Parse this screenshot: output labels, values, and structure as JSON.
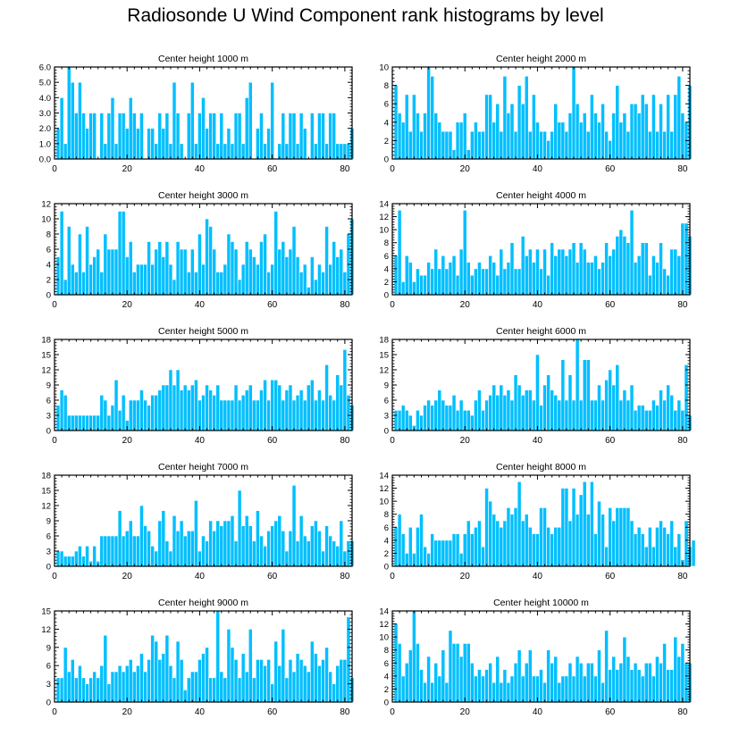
{
  "title": "Radiosonde U Wind Component rank histograms by level",
  "colors": {
    "bar": "#00bfff",
    "bar_edge": "#ffffff",
    "axis": "#000000",
    "background": "#ffffff"
  },
  "chart_data": [
    {
      "type": "bar",
      "title": "Center height 1000 m",
      "xlabel": "",
      "ylabel": "",
      "xlim": [
        0,
        82
      ],
      "ylim": [
        0,
        6
      ],
      "xticks": [
        0,
        20,
        40,
        60,
        80
      ],
      "yticks": [
        0,
        1,
        2,
        3,
        4,
        5,
        6
      ],
      "ytick_labels": [
        "0.0",
        "1.0",
        "2.0",
        "3.0",
        "4.0",
        "5.0",
        "6.0"
      ],
      "x_start": 1,
      "values": [
        2,
        4,
        1,
        6,
        5,
        3,
        5,
        3,
        2,
        3,
        3,
        0,
        3,
        1,
        3,
        4,
        1,
        3,
        3,
        2,
        4,
        3,
        2,
        3,
        0,
        2,
        2,
        1,
        3,
        2,
        3,
        1,
        5,
        3,
        1,
        0,
        3,
        5,
        1,
        3,
        4,
        2,
        3,
        3,
        1,
        3,
        1,
        2,
        1,
        3,
        3,
        1,
        4,
        5,
        0,
        2,
        3,
        1,
        2,
        5,
        0,
        1,
        3,
        1,
        3,
        3,
        1,
        3,
        2,
        0,
        3,
        1,
        3,
        3,
        1,
        3,
        3,
        1,
        1,
        1,
        1,
        2
      ]
    },
    {
      "type": "bar",
      "title": "Center height 2000 m",
      "xlabel": "",
      "ylabel": "",
      "xlim": [
        0,
        82
      ],
      "ylim": [
        0,
        10
      ],
      "xticks": [
        0,
        20,
        40,
        60,
        80
      ],
      "yticks": [
        0,
        2,
        4,
        6,
        8,
        10
      ],
      "ytick_labels": [
        "0",
        "2",
        "4",
        "6",
        "8",
        "10"
      ],
      "x_start": 1,
      "values": [
        8,
        5,
        4,
        7,
        3,
        7,
        5,
        3,
        5,
        10,
        9,
        5,
        4,
        3,
        3,
        3,
        1,
        4,
        4,
        5,
        1,
        3,
        4,
        3,
        3,
        7,
        7,
        4,
        6,
        3,
        9,
        5,
        6,
        3,
        8,
        6,
        9,
        3,
        7,
        4,
        3,
        3,
        2,
        3,
        6,
        4,
        4,
        3,
        5,
        10,
        6,
        4,
        5,
        3,
        7,
        5,
        4,
        6,
        3,
        2,
        5,
        8,
        4,
        5,
        3,
        6,
        6,
        5,
        7,
        6,
        3,
        7,
        3,
        6,
        3,
        7,
        3,
        7,
        9,
        5,
        4,
        8
      ]
    },
    {
      "type": "bar",
      "title": "Center height 3000 m",
      "xlabel": "",
      "ylabel": "",
      "xlim": [
        0,
        82
      ],
      "ylim": [
        0,
        12
      ],
      "xticks": [
        0,
        20,
        40,
        60,
        80
      ],
      "yticks": [
        0,
        2,
        4,
        6,
        8,
        10,
        12
      ],
      "ytick_labels": [
        "0",
        "2",
        "4",
        "6",
        "8",
        "10",
        "12"
      ],
      "x_start": 1,
      "values": [
        5,
        11,
        2,
        9,
        4,
        3,
        8,
        3,
        9,
        4,
        5,
        6,
        3,
        8,
        6,
        6,
        6,
        11,
        11,
        5,
        7,
        3,
        4,
        4,
        4,
        7,
        4,
        6,
        7,
        5,
        7,
        4,
        2,
        7,
        6,
        6,
        3,
        6,
        3,
        8,
        4,
        10,
        9,
        6,
        3,
        3,
        4,
        8,
        7,
        6,
        2,
        4,
        7,
        6,
        5,
        4,
        7,
        8,
        3,
        4,
        11,
        6,
        7,
        5,
        6,
        9,
        5,
        3,
        4,
        1,
        5,
        2,
        4,
        3,
        9,
        4,
        7,
        5,
        6,
        3,
        8,
        10
      ]
    },
    {
      "type": "bar",
      "title": "Center height 4000 m",
      "xlabel": "",
      "ylabel": "",
      "xlim": [
        0,
        82
      ],
      "ylim": [
        0,
        14
      ],
      "xticks": [
        0,
        20,
        40,
        60,
        80
      ],
      "yticks": [
        0,
        2,
        4,
        6,
        8,
        10,
        12,
        14
      ],
      "ytick_labels": [
        "0",
        "2",
        "4",
        "6",
        "8",
        "10",
        "12",
        "14"
      ],
      "x_start": 1,
      "values": [
        6,
        13,
        2,
        6,
        5,
        2,
        4,
        3,
        3,
        5,
        4,
        7,
        4,
        6,
        4,
        5,
        6,
        3,
        7,
        13,
        5,
        3,
        4,
        5,
        4,
        4,
        6,
        5,
        3,
        7,
        4,
        5,
        8,
        4,
        4,
        9,
        6,
        7,
        5,
        7,
        4,
        7,
        3,
        8,
        6,
        7,
        7,
        6,
        7,
        8,
        5,
        8,
        7,
        5,
        5,
        6,
        4,
        5,
        8,
        6,
        7,
        9,
        10,
        9,
        8,
        13,
        5,
        6,
        8,
        8,
        3,
        6,
        5,
        8,
        4,
        3,
        7,
        7,
        6,
        11,
        11,
        9
      ]
    },
    {
      "type": "bar",
      "title": "Center height 5000 m",
      "xlabel": "",
      "ylabel": "",
      "xlim": [
        0,
        82
      ],
      "ylim": [
        0,
        18
      ],
      "xticks": [
        0,
        20,
        40,
        60,
        80
      ],
      "yticks": [
        0,
        3,
        6,
        9,
        12,
        15,
        18
      ],
      "ytick_labels": [
        "0",
        "3",
        "6",
        "9",
        "12",
        "15",
        "18"
      ],
      "x_start": 1,
      "values": [
        5,
        8,
        7,
        3,
        3,
        3,
        3,
        3,
        3,
        3,
        3,
        3,
        7,
        6,
        3,
        5,
        10,
        4,
        7,
        2,
        6,
        6,
        6,
        8,
        6,
        5,
        7,
        7,
        8,
        9,
        9,
        12,
        9,
        12,
        8,
        9,
        8,
        9,
        10,
        6,
        7,
        9,
        8,
        7,
        9,
        6,
        6,
        6,
        6,
        9,
        6,
        7,
        8,
        9,
        6,
        6,
        8,
        10,
        6,
        10,
        10,
        9,
        6,
        8,
        9,
        6,
        7,
        8,
        6,
        9,
        10,
        6,
        8,
        6,
        13,
        7,
        6,
        11,
        9,
        16,
        7,
        5
      ]
    },
    {
      "type": "bar",
      "title": "Center height 6000 m",
      "xlabel": "",
      "ylabel": "",
      "xlim": [
        0,
        82
      ],
      "ylim": [
        0,
        18
      ],
      "xticks": [
        0,
        20,
        40,
        60,
        80
      ],
      "yticks": [
        0,
        3,
        6,
        9,
        12,
        15,
        18
      ],
      "ytick_labels": [
        "0",
        "3",
        "6",
        "9",
        "12",
        "15",
        "18"
      ],
      "x_start": 1,
      "values": [
        4,
        4,
        5,
        4,
        3,
        1,
        4,
        3,
        5,
        6,
        5,
        6,
        8,
        6,
        5,
        5,
        7,
        4,
        6,
        4,
        4,
        3,
        6,
        8,
        4,
        6,
        7,
        9,
        7,
        9,
        7,
        8,
        6,
        11,
        9,
        7,
        8,
        8,
        6,
        15,
        5,
        9,
        11,
        8,
        7,
        6,
        14,
        6,
        11,
        6,
        18,
        6,
        14,
        14,
        6,
        6,
        9,
        6,
        10,
        12,
        9,
        13,
        6,
        8,
        6,
        9,
        4,
        5,
        5,
        4,
        4,
        6,
        5,
        8,
        6,
        9,
        7,
        4,
        6,
        4,
        13,
        3
      ]
    },
    {
      "type": "bar",
      "title": "Center height 7000 m",
      "xlabel": "",
      "ylabel": "",
      "xlim": [
        0,
        82
      ],
      "ylim": [
        0,
        18
      ],
      "xticks": [
        0,
        20,
        40,
        60,
        80
      ],
      "yticks": [
        0,
        3,
        6,
        9,
        12,
        15,
        18
      ],
      "ytick_labels": [
        "0",
        "3",
        "6",
        "9",
        "12",
        "15",
        "18"
      ],
      "x_start": 1,
      "values": [
        3,
        3,
        2,
        2,
        2,
        3,
        4,
        2,
        4,
        1,
        4,
        1,
        6,
        6,
        6,
        6,
        6,
        11,
        6,
        7,
        9,
        6,
        6,
        12,
        8,
        7,
        4,
        3,
        9,
        11,
        5,
        3,
        10,
        7,
        9,
        6,
        7,
        7,
        13,
        3,
        6,
        5,
        9,
        7,
        9,
        8,
        9,
        9,
        10,
        5,
        15,
        8,
        10,
        8,
        5,
        11,
        6,
        4,
        7,
        8,
        9,
        10,
        7,
        3,
        7,
        16,
        5,
        10,
        6,
        5,
        8,
        9,
        7,
        3,
        8,
        6,
        5,
        4,
        9,
        3,
        5,
        5
      ]
    },
    {
      "type": "bar",
      "title": "Center height 8000 m",
      "xlabel": "",
      "ylabel": "",
      "xlim": [
        0,
        82
      ],
      "ylim": [
        0,
        14
      ],
      "xticks": [
        0,
        20,
        40,
        60,
        80
      ],
      "yticks": [
        0,
        2,
        4,
        6,
        8,
        10,
        12,
        14
      ],
      "ytick_labels": [
        "0",
        "2",
        "4",
        "6",
        "8",
        "10",
        "12",
        "14"
      ],
      "x_start": 1,
      "values": [
        6,
        8,
        5,
        2,
        6,
        2,
        6,
        8,
        3,
        2,
        5,
        4,
        4,
        4,
        4,
        4,
        5,
        5,
        2,
        5,
        7,
        5,
        6,
        7,
        3,
        12,
        10,
        8,
        7,
        6,
        7,
        9,
        8,
        9,
        13,
        7,
        8,
        6,
        5,
        5,
        9,
        9,
        6,
        5,
        6,
        6,
        12,
        12,
        7,
        12,
        8,
        11,
        13,
        8,
        13,
        5,
        10,
        8,
        3,
        9,
        7,
        9,
        9,
        9,
        9,
        7,
        5,
        6,
        5,
        3,
        6,
        3,
        6,
        7,
        6,
        5,
        7,
        3,
        5,
        1,
        7,
        3,
        4
      ]
    },
    {
      "type": "bar",
      "title": "Center height 9000 m",
      "xlabel": "",
      "ylabel": "",
      "xlim": [
        0,
        82
      ],
      "ylim": [
        0,
        15
      ],
      "xticks": [
        0,
        20,
        40,
        60,
        80
      ],
      "yticks": [
        0,
        3,
        6,
        9,
        12,
        15
      ],
      "ytick_labels": [
        "0",
        "3",
        "6",
        "9",
        "12",
        "15"
      ],
      "x_start": 1,
      "values": [
        4,
        4,
        9,
        5,
        7,
        4,
        6,
        4,
        3,
        4,
        5,
        4,
        6,
        11,
        3,
        5,
        5,
        6,
        5,
        6,
        7,
        5,
        6,
        8,
        5,
        7,
        11,
        10,
        7,
        8,
        11,
        6,
        4,
        10,
        7,
        2,
        4,
        5,
        5,
        7,
        8,
        9,
        4,
        4,
        15,
        5,
        4,
        12,
        9,
        7,
        4,
        8,
        5,
        12,
        4,
        7,
        7,
        6,
        7,
        3,
        10,
        6,
        12,
        4,
        7,
        5,
        8,
        7,
        6,
        5,
        10,
        8,
        6,
        7,
        9,
        5,
        3,
        6,
        7,
        7,
        14,
        4
      ]
    },
    {
      "type": "bar",
      "title": "Center height 10000 m",
      "xlabel": "",
      "ylabel": "",
      "xlim": [
        0,
        82
      ],
      "ylim": [
        0,
        14
      ],
      "xticks": [
        0,
        20,
        40,
        60,
        80
      ],
      "yticks": [
        0,
        2,
        4,
        6,
        8,
        10,
        12,
        14
      ],
      "ytick_labels": [
        "0",
        "2",
        "4",
        "6",
        "8",
        "10",
        "12",
        "14"
      ],
      "x_start": 1,
      "values": [
        12,
        9,
        4,
        6,
        8,
        14,
        9,
        5,
        3,
        7,
        3,
        6,
        4,
        8,
        3,
        11,
        9,
        9,
        7,
        9,
        9,
        6,
        4,
        5,
        4,
        5,
        6,
        3,
        7,
        3,
        5,
        3,
        4,
        6,
        8,
        4,
        6,
        8,
        4,
        4,
        5,
        3,
        8,
        6,
        7,
        3,
        4,
        4,
        6,
        4,
        7,
        6,
        4,
        6,
        6,
        4,
        8,
        3,
        11,
        5,
        7,
        5,
        6,
        10,
        7,
        5,
        6,
        5,
        4,
        6,
        6,
        4,
        7,
        6,
        9,
        5,
        5,
        10,
        7,
        9,
        6,
        6
      ]
    }
  ]
}
